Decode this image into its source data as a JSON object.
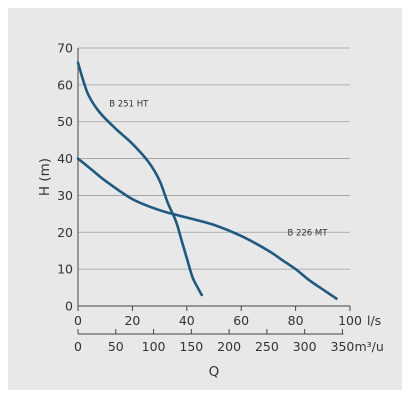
{
  "chart_data": {
    "type": "line",
    "ylabel": "H (m)",
    "xlabel": "Q",
    "x_unit_primary": "l/s",
    "x_unit_secondary": "m³/u",
    "ylim": [
      0,
      70
    ],
    "xlim": [
      0,
      100
    ],
    "y_ticks": [
      "0",
      "10",
      "20",
      "30",
      "40",
      "50",
      "60",
      "70"
    ],
    "x_ticks_primary": [
      "0",
      "20",
      "40",
      "60",
      "80",
      "100"
    ],
    "x_ticks_secondary": [
      "0",
      "50",
      "100",
      "150",
      "200",
      "250",
      "300",
      "350"
    ],
    "grid": "horizontal",
    "series": [
      {
        "name": "B 251 HT",
        "color": "#1d5a80",
        "x": [
          0,
          2,
          4,
          8,
          14,
          20,
          26,
          30,
          33,
          36,
          38,
          40,
          42,
          44,
          45.5
        ],
        "y": [
          66,
          61,
          57,
          52.5,
          48,
          44,
          39,
          34,
          28,
          23,
          18,
          13,
          8,
          5,
          3
        ]
      },
      {
        "name": "B 226 MT",
        "color": "#1d5a80",
        "x": [
          0,
          5,
          10,
          20,
          30,
          40,
          50,
          60,
          70,
          75,
          80,
          85,
          90,
          95
        ],
        "y": [
          40,
          37,
          34,
          29,
          26,
          24,
          22,
          19,
          15,
          12.5,
          10,
          7,
          4.5,
          2
        ]
      }
    ]
  }
}
